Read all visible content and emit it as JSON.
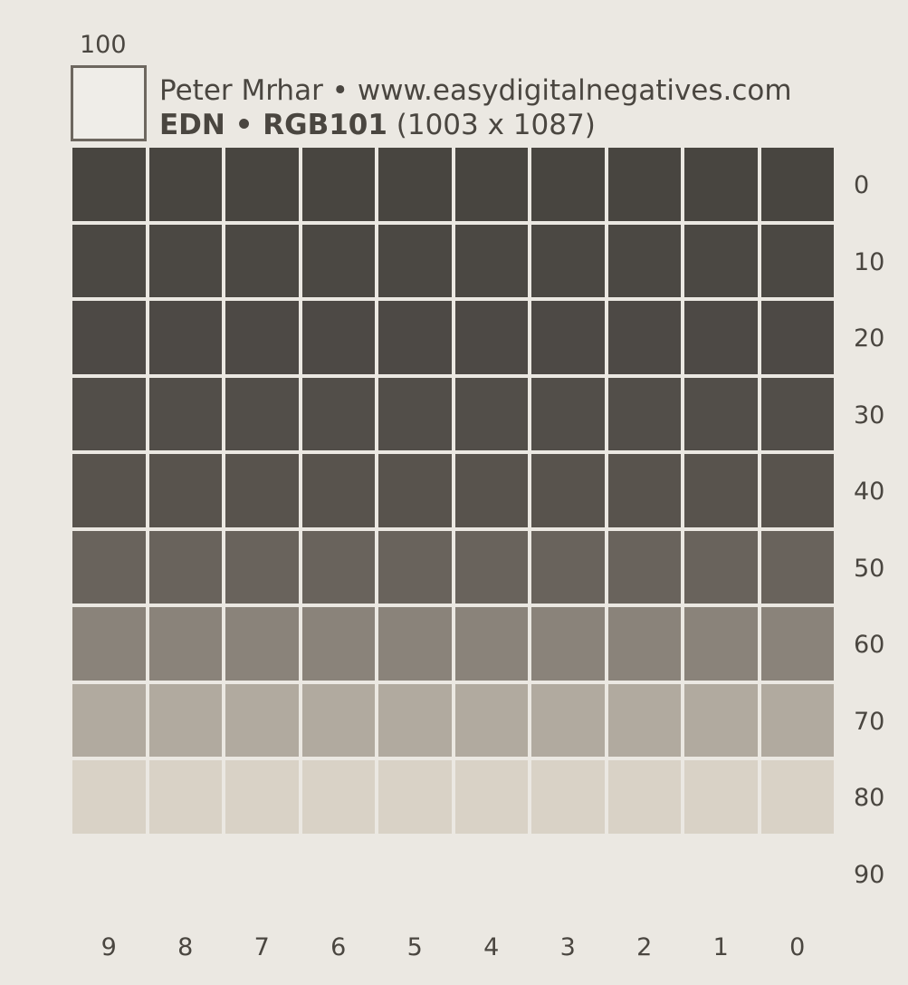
{
  "header": {
    "corner_value": "100",
    "line1": "Peter Mrhar • www.easydigitalnegatives.com",
    "line2_bold": "EDN • RGB101",
    "line2_rest": " (1003 x 1087)"
  },
  "row_labels": [
    "0",
    "10",
    "20",
    "30",
    "40",
    "50",
    "60",
    "70",
    "80",
    "90"
  ],
  "col_labels": [
    "9",
    "8",
    "7",
    "6",
    "5",
    "4",
    "3",
    "2",
    "1",
    "0"
  ],
  "row_colors": [
    "#484540",
    "#4b4843",
    "#4d4945",
    "#524e49",
    "#58534d",
    "#69635c",
    "#8a837a",
    "#b1aa9f",
    "#d9d2c6",
    "#ebe8e2"
  ],
  "colors": {
    "background": "#ebe8e2",
    "text": "#4a4640",
    "gap": "#f2f0ec"
  }
}
